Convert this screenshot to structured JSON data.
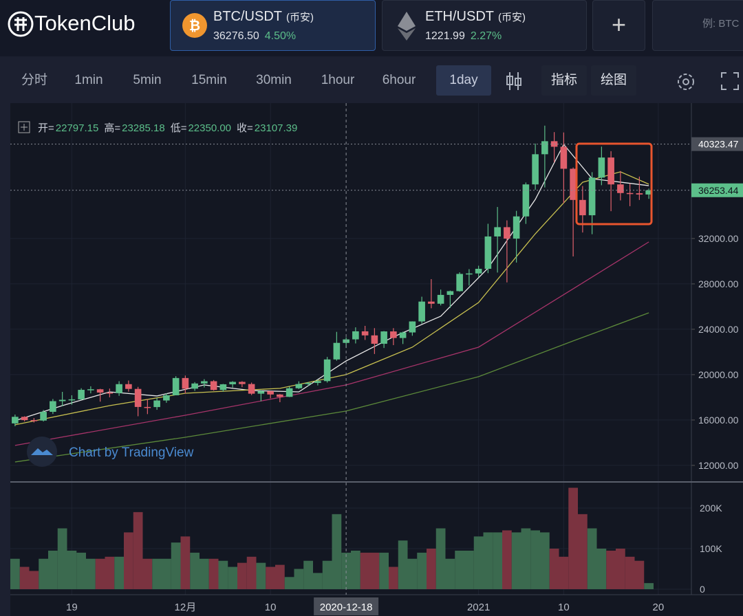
{
  "header": {
    "logo": "TokenClub",
    "tabs": [
      {
        "pair": "BTC/USDT",
        "exchange": "(币安)",
        "price": "36276.50",
        "change": "4.50%"
      },
      {
        "pair": "ETH/USDT",
        "exchange": "(币安)",
        "price": "1221.99",
        "change": "2.27%"
      }
    ],
    "add": "+",
    "search": "例: BTC"
  },
  "toolbar": {
    "intervals": [
      "分时",
      "1min",
      "5min",
      "15min",
      "30min",
      "1hour",
      "6hour",
      "1day"
    ],
    "active": "1day",
    "tools": [
      "指标",
      "绘图"
    ]
  },
  "chart_data": {
    "type": "candlestick",
    "watermark": "Chart by TradingView",
    "ohlc_legend": [
      {
        "label": "开=",
        "value": "22797.15"
      },
      {
        "label": "高=",
        "value": "23285.18"
      },
      {
        "label": "低=",
        "value": "22350.00"
      },
      {
        "label": "收=",
        "value": "23107.39"
      }
    ],
    "open": [
      15700,
      16280,
      15990,
      15950,
      16720,
      17660,
      17780,
      17820,
      18660,
      18710,
      18420,
      18370,
      19160,
      18740,
      17150,
      17140,
      17720,
      18180,
      19700,
      18760,
      19220,
      19420,
      18650,
      19150,
      19360,
      19170,
      18320,
      18550,
      18250,
      18040,
      18800,
      19170,
      19270,
      19430,
      21340,
      22797.15,
      23110,
      23820,
      23460,
      22720,
      23810,
      23230,
      23720,
      24690,
      26440,
      26250,
      27030,
      27360,
      28880,
      28920,
      29330,
      32180,
      33000,
      31990,
      33950,
      36770,
      39430,
      40580,
      40090,
      38150,
      35400,
      34050,
      37370,
      39140,
      36770,
      36010,
      35990,
      35880
    ],
    "high": [
      16480,
      16330,
      16170,
      16880,
      17850,
      18480,
      18180,
      18800,
      18970,
      18750,
      18770,
      19420,
      19480,
      18920,
      17850,
      17950,
      18350,
      19860,
      19920,
      19340,
      19600,
      19520,
      19180,
      19420,
      19420,
      19300,
      18640,
      18560,
      18290,
      18950,
      19410,
      19350,
      19570,
      21560,
      23770,
      23285.18,
      24170,
      24300,
      24100,
      23840,
      24100,
      23790,
      24700,
      26870,
      28420,
      27500,
      27410,
      29020,
      29300,
      29600,
      33300,
      34780,
      33600,
      34440,
      36940,
      40370,
      41950,
      41380,
      41350,
      38260,
      36630,
      37850,
      40100,
      39700,
      37950,
      36850,
      37460,
      36400
    ],
    "low": [
      15450,
      15880,
      15780,
      15870,
      16530,
      17210,
      17350,
      17760,
      18350,
      17620,
      18000,
      18130,
      18500,
      16330,
      16520,
      16900,
      17520,
      18180,
      18330,
      18570,
      18870,
      18590,
      18500,
      18860,
      18900,
      18200,
      17650,
      17910,
      17570,
      18020,
      18730,
      19000,
      19050,
      19300,
      21230,
      22350,
      22750,
      23060,
      21820,
      22350,
      22600,
      22700,
      23430,
      24500,
      25850,
      26100,
      25880,
      27320,
      27850,
      28620,
      28950,
      29000,
      28130,
      29880,
      33290,
      36300,
      36500,
      38720,
      35110,
      30420,
      32530,
      32380,
      36700,
      34410,
      35360,
      34850,
      35400,
      35500
    ],
    "close": [
      16280,
      15990,
      15950,
      16720,
      17660,
      17780,
      17820,
      18660,
      18710,
      18420,
      18370,
      19160,
      18740,
      17150,
      17140,
      17720,
      18180,
      19700,
      18760,
      19220,
      19420,
      18650,
      19150,
      19360,
      19170,
      18320,
      18550,
      18250,
      18040,
      18800,
      19170,
      19270,
      19430,
      21340,
      22800,
      23107.39,
      23820,
      23460,
      22720,
      23810,
      23230,
      23720,
      24690,
      26440,
      26250,
      27030,
      27360,
      28880,
      28920,
      29330,
      32180,
      33000,
      31990,
      33950,
      36770,
      39430,
      40580,
      40090,
      38150,
      35400,
      34050,
      37370,
      39140,
      36770,
      36010,
      35990,
      35880,
      36253.44
    ],
    "volume": [
      75000,
      55000,
      45000,
      75000,
      95000,
      150000,
      95000,
      90000,
      75000,
      75000,
      80000,
      80000,
      140000,
      190000,
      75000,
      75000,
      75000,
      115000,
      130000,
      90000,
      75000,
      75000,
      70000,
      55000,
      65000,
      80000,
      65000,
      55000,
      60000,
      30000,
      50000,
      70000,
      40000,
      70000,
      185000,
      90000,
      95000,
      90000,
      90000,
      90000,
      55000,
      120000,
      75000,
      90000,
      100000,
      150000,
      75000,
      95000,
      95000,
      130000,
      140000,
      140000,
      145000,
      140000,
      150000,
      145000,
      140000,
      100000,
      80000,
      250000,
      185000,
      150000,
      100000,
      95000,
      100000,
      80000,
      70000,
      15000
    ],
    "up_color": "#5cbf8a",
    "down_color": "#e0606c",
    "vol_up_color": "#3b6a4f",
    "vol_down_color": "#7b3340",
    "ma": [
      {
        "color": "#e8e8e8",
        "x": [
          0,
          5,
          10,
          15,
          20,
          25,
          30,
          35,
          40,
          45,
          50,
          55,
          58,
          61,
          64,
          67
        ],
        "values": [
          15940,
          17270,
          18480,
          18120,
          19090,
          18600,
          18480,
          21210,
          23330,
          25150,
          29390,
          35450,
          40300,
          37270,
          36970,
          36660
        ]
      },
      {
        "color": "#c8c050",
        "x": [
          0,
          10,
          18,
          28,
          35,
          42,
          49,
          55,
          60,
          64,
          67
        ],
        "values": [
          15580,
          17270,
          18360,
          18790,
          20000,
          22420,
          26360,
          32420,
          36960,
          37880,
          36790
        ]
      },
      {
        "color": "#a8346a",
        "x": [
          0,
          18,
          35,
          49,
          59,
          67
        ],
        "values": [
          13760,
          16420,
          19090,
          22420,
          27570,
          31700
        ]
      },
      {
        "color": "#5c8a3a",
        "x": [
          0,
          18,
          35,
          49,
          59,
          67
        ],
        "values": [
          12300,
          14480,
          16790,
          19820,
          22970,
          25450
        ]
      }
    ],
    "xlim": [
      -0.5,
      71.5
    ],
    "xticks": [
      {
        "value": 6,
        "label": "19"
      },
      {
        "value": 18,
        "label": "12月"
      },
      {
        "value": 27,
        "label": "10"
      },
      {
        "value": 49,
        "label": "2021"
      },
      {
        "value": 58,
        "label": "10"
      },
      {
        "value": 68,
        "label": "20"
      }
    ],
    "crosshair": {
      "value": 35,
      "label": "2020-12-18"
    },
    "ylim": [
      10600,
      43330
    ],
    "yticks": [
      {
        "value": 12000,
        "label": "12000.00"
      },
      {
        "value": 16000,
        "label": "16000.00"
      },
      {
        "value": 20000,
        "label": "20000.00"
      },
      {
        "value": 24000,
        "label": "24000.00"
      },
      {
        "value": 28000,
        "label": "28000.00"
      },
      {
        "value": 32000,
        "label": "32000.00"
      }
    ],
    "price_lines": [
      {
        "value": 40323.47,
        "label": "40323.47",
        "color": "#4a4e58"
      },
      {
        "value": 36253.44,
        "label": "36253.44",
        "color": "#5cbf8a"
      }
    ],
    "vol_ylim": [
      -13560,
      262700
    ],
    "vol_yticks": [
      0,
      {
        "value": 100000,
        "label": "100K"
      },
      {
        "value": 200000,
        "label": "200K"
      }
    ]
  }
}
